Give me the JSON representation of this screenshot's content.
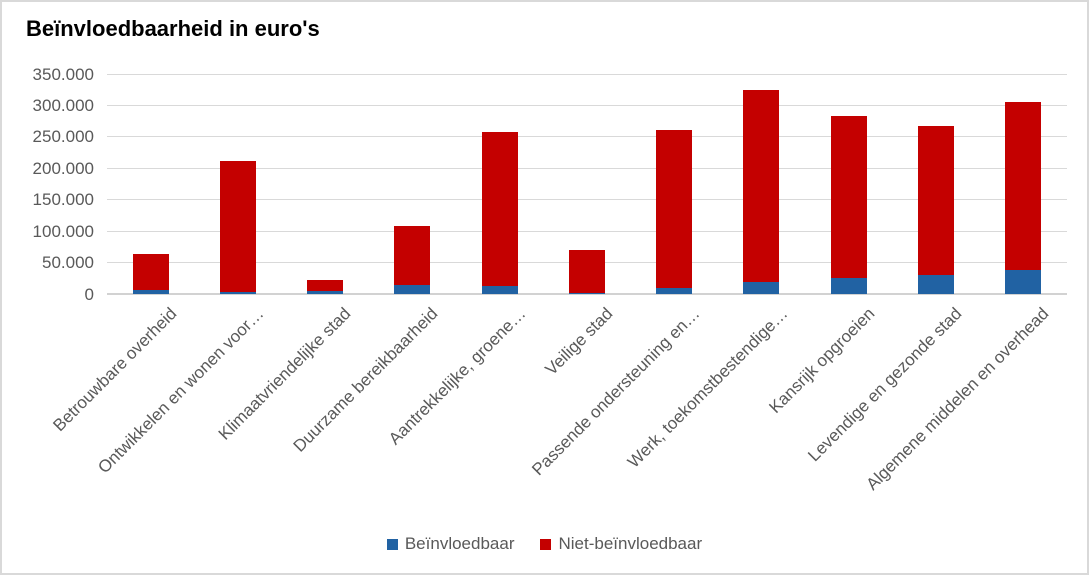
{
  "title": "Beïnvloedbaarheid in euro's",
  "colors": {
    "beinvloedbaar": "#2162A3",
    "niet_beinvloedbaar": "#C40000",
    "grid": "#D9D9D9",
    "axis_text": "#595959",
    "title_text": "#000000",
    "frame_border": "#D9D9D9"
  },
  "y_axis": {
    "tick_labels": [
      "350.000",
      "300.000",
      "250.000",
      "200.000",
      "150.000",
      "100.000",
      "50.000",
      "0"
    ]
  },
  "chart_data": {
    "type": "bar",
    "stacked": true,
    "title": "Beïnvloedbaarheid in euro's",
    "categories": [
      "Betrouwbare overheid",
      "Ontwikkelen en wonen voor…",
      "Klimaatvriendelijke stad",
      "Duurzame bereikbaarheid",
      "Aantrekkelijke, groene…",
      "Veilige stad",
      "Passende ondersteuning en…",
      "Werk, toekomstbestendige…",
      "Kansrijk opgroeien",
      "Levendige en gezonde stad",
      "Algemene middelen en overhead"
    ],
    "series": [
      {
        "name": "Beïnvloedbaar",
        "color": "#2162A3",
        "values": [
          6000,
          4000,
          5000,
          15000,
          13000,
          2000,
          10000,
          19000,
          25000,
          31000,
          39000
        ]
      },
      {
        "name": "Niet-beïnvloedbaar",
        "color": "#C40000",
        "values": [
          57000,
          208000,
          17000,
          93000,
          245000,
          68000,
          251000,
          306000,
          258000,
          236000,
          266000
        ]
      }
    ],
    "ylim": [
      0,
      350000
    ],
    "grid": true,
    "legend_position": "bottom"
  }
}
